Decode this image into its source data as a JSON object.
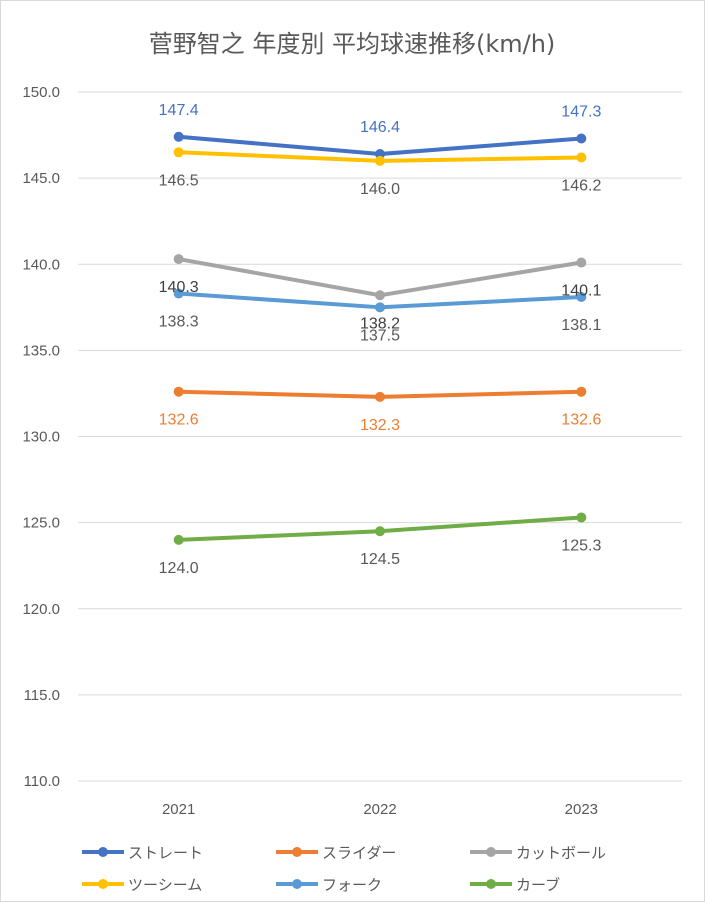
{
  "chart_data": {
    "type": "line",
    "title": "菅野智之 年度別 平均球速推移(km/h)",
    "categories": [
      "2021",
      "2022",
      "2023"
    ],
    "ylim": [
      110.0,
      150.0
    ],
    "yticks": [
      "110.0",
      "115.0",
      "120.0",
      "125.0",
      "130.0",
      "135.0",
      "140.0",
      "145.0",
      "150.0"
    ],
    "grid": true,
    "legend_position": "bottom",
    "series": [
      {
        "name": "ストレート",
        "color": "#4472C4",
        "values": [
          147.4,
          146.4,
          147.3
        ],
        "labels": [
          "147.4",
          "146.4",
          "147.3"
        ],
        "label_color": "#4472C4",
        "label_pos": "above"
      },
      {
        "name": "スライダー",
        "color": "#ED7D31",
        "values": [
          132.6,
          132.3,
          132.6
        ],
        "labels": [
          "132.6",
          "132.3",
          "132.6"
        ],
        "label_color": "#ED7D31",
        "label_pos": "below"
      },
      {
        "name": "カットボール",
        "color": "#A5A5A5",
        "values": [
          140.3,
          138.2,
          140.1
        ],
        "labels": [
          "140.3",
          "138.2",
          "140.1"
        ],
        "label_color": "#404040",
        "label_pos": "below"
      },
      {
        "name": "ツーシーム",
        "color": "#FFC000",
        "values": [
          146.5,
          146.0,
          146.2
        ],
        "labels": [
          "146.5",
          "146.0",
          "146.2"
        ],
        "label_color": "#595959",
        "label_pos": "below"
      },
      {
        "name": "フォーク",
        "color": "#5B9BD5",
        "values": [
          138.3,
          137.5,
          138.1
        ],
        "labels": [
          "138.3",
          "137.5",
          "138.1"
        ],
        "label_color": "#595959",
        "label_pos": "below"
      },
      {
        "name": "カーブ",
        "color": "#70AD47",
        "values": [
          124.0,
          124.5,
          125.3
        ],
        "labels": [
          "124.0",
          "124.5",
          "125.3"
        ],
        "label_color": "#595959",
        "label_pos": "below"
      }
    ]
  }
}
